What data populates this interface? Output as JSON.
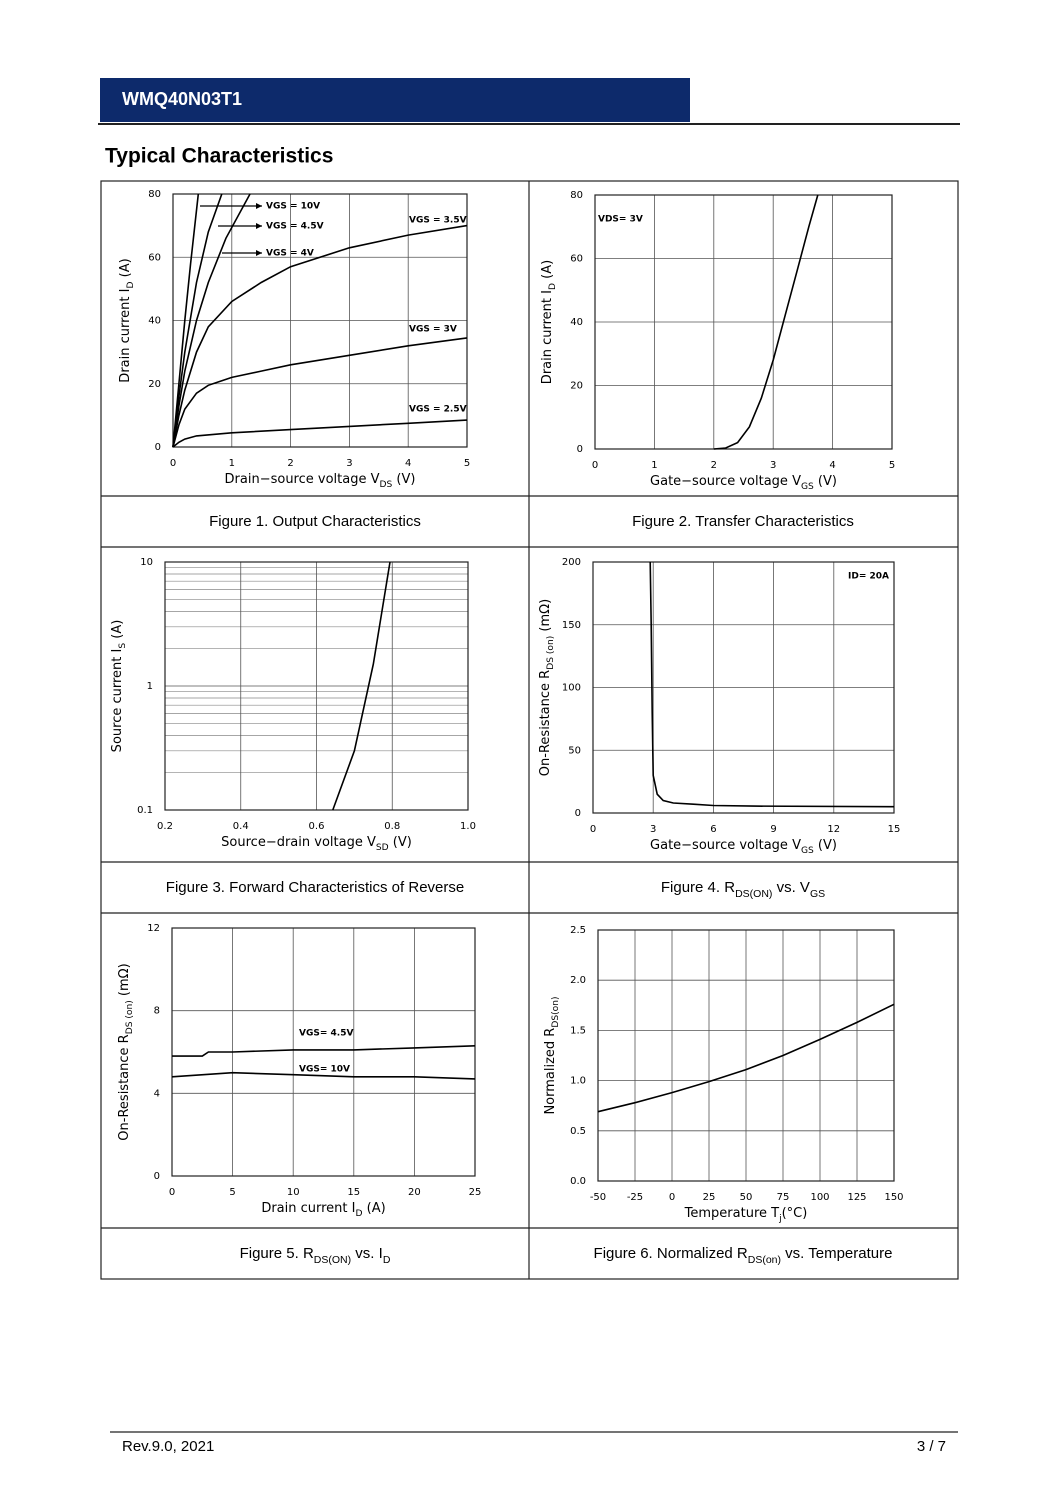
{
  "header": {
    "title": "WMQ40N03T1"
  },
  "section_title": "Typical Characteristics",
  "chart_data": [
    {
      "type": "line",
      "caption": [
        "Figure 1. Output Characteristics"
      ],
      "x_label": [
        "Drain−source voltage V",
        "DS",
        " (V)"
      ],
      "y_label": [
        "Drain current I",
        "D",
        " (A)"
      ],
      "xlim": [
        0,
        5
      ],
      "ylim": [
        0,
        80
      ],
      "xticks": [
        0,
        1,
        2,
        3,
        4,
        5
      ],
      "yticks": [
        0,
        20,
        40,
        60,
        80
      ],
      "grid": true,
      "series": [
        {
          "name": "VGS = 10V",
          "color": "#000000",
          "x": [
            0,
            0.1,
            0.2,
            0.3,
            0.43
          ],
          "values": [
            0,
            20,
            40,
            58,
            80
          ]
        },
        {
          "name": "VGS = 4.5V",
          "color": "#000000",
          "x": [
            0,
            0.1,
            0.2,
            0.4,
            0.6,
            0.83
          ],
          "values": [
            0,
            16,
            30,
            52,
            68,
            80
          ]
        },
        {
          "name": "VGS = 4V",
          "color": "#000000",
          "x": [
            0,
            0.1,
            0.2,
            0.4,
            0.6,
            0.9,
            1.31
          ],
          "values": [
            0,
            13,
            24,
            40,
            52,
            66,
            80
          ]
        },
        {
          "name": "VGS = 3.5V",
          "color": "#000000",
          "x": [
            0,
            0.1,
            0.2,
            0.4,
            0.6,
            1,
            1.5,
            2,
            3,
            4,
            5
          ],
          "values": [
            0,
            10,
            18,
            30,
            38,
            46,
            52,
            57,
            63,
            67,
            70
          ]
        },
        {
          "name": "VGS = 3V",
          "color": "#000000",
          "x": [
            0,
            0.1,
            0.2,
            0.4,
            0.6,
            1,
            1.5,
            2,
            3,
            4,
            5
          ],
          "values": [
            0,
            7,
            12,
            17,
            19.5,
            22,
            24,
            26,
            29,
            32,
            34.5
          ]
        },
        {
          "name": "VGS = 2.5V",
          "color": "#000000",
          "x": [
            0,
            0.1,
            0.2,
            0.4,
            1,
            2,
            3,
            4,
            5
          ],
          "values": [
            0,
            1.5,
            2.5,
            3.5,
            4.5,
            5.5,
            6.5,
            7.5,
            8.5
          ]
        }
      ]
    },
    {
      "type": "line",
      "caption": [
        "Figure 2. Transfer Characteristics"
      ],
      "x_label": [
        "Gate−source voltage V",
        "GS",
        " (V)"
      ],
      "y_label": [
        "Drain current I",
        "D",
        " (A)"
      ],
      "xlim": [
        0,
        5
      ],
      "ylim": [
        0,
        80
      ],
      "xticks": [
        0,
        1,
        2,
        3,
        4,
        5
      ],
      "yticks": [
        0,
        20,
        40,
        60,
        80
      ],
      "grid": true,
      "annotation": "VDS= 3V",
      "series": [
        {
          "name": "VDS= 3V",
          "color": "#000000",
          "x": [
            2,
            2.2,
            2.4,
            2.6,
            2.8,
            3,
            3.2,
            3.4,
            3.6,
            3.75
          ],
          "values": [
            0,
            0.3,
            2,
            7,
            16,
            28,
            42,
            56,
            70,
            80
          ]
        }
      ]
    },
    {
      "type": "line",
      "caption": [
        "Figure 3. Forward Characteristics of Reverse"
      ],
      "x_label": [
        "Source−drain voltage V",
        "SD",
        " (V)"
      ],
      "y_label": [
        "Source current I",
        "S",
        " (A)"
      ],
      "xlim": [
        0.2,
        1
      ],
      "ylim": [
        0.1,
        10
      ],
      "log_y": true,
      "xticks": [
        0.2,
        0.4,
        0.6,
        0.8,
        {
          "value": 1,
          "label": "1.0"
        }
      ],
      "yticks": [
        0.1,
        1,
        10
      ],
      "minor_yticks": [
        0.2,
        0.3,
        0.4,
        0.5,
        0.6,
        0.7,
        0.8,
        0.9,
        2,
        3,
        4,
        5,
        6,
        7,
        8,
        9
      ],
      "grid": true,
      "series": [
        {
          "name": "IS",
          "color": "#000000",
          "x": [
            0.643,
            0.7,
            0.75,
            0.794
          ],
          "values": [
            0.1,
            0.3,
            1.5,
            10
          ]
        }
      ]
    },
    {
      "type": "line",
      "caption": [
        "Figure 4. R",
        "DS(ON)",
        "  vs. V",
        "GS"
      ],
      "x_label": [
        "Gate−source voltage V",
        "GS",
        " (V)"
      ],
      "y_label": [
        "On-Resistance  R",
        "DS (on)",
        " (mΩ)"
      ],
      "xlim": [
        0,
        15
      ],
      "ylim": [
        0,
        200
      ],
      "xticks": [
        0,
        3,
        6,
        9,
        12,
        15
      ],
      "yticks": [
        0,
        50,
        100,
        150,
        200
      ],
      "grid": true,
      "annotation": "ID= 20A",
      "series": [
        {
          "name": "ID= 20A",
          "color": "#000000",
          "x": [
            2.85,
            2.9,
            2.95,
            3,
            3.2,
            3.5,
            4,
            5,
            6,
            8,
            15
          ],
          "values": [
            200,
            150,
            80,
            30,
            15,
            10,
            8,
            7,
            6,
            5.5,
            5
          ]
        }
      ]
    },
    {
      "type": "line",
      "caption": [
        "Figure 5. R",
        "DS(ON)",
        " vs. I",
        "D"
      ],
      "x_label": [
        "Drain current I",
        "D",
        " (A)"
      ],
      "y_label": [
        "On-Resistance  R",
        "DS (on)",
        " (mΩ)"
      ],
      "xlim": [
        0,
        25
      ],
      "ylim": [
        0,
        12
      ],
      "xticks": [
        0,
        5,
        10,
        15,
        20,
        25
      ],
      "yticks": [
        0,
        4,
        8,
        12
      ],
      "grid": true,
      "series": [
        {
          "name": "VGS= 4.5V",
          "color": "#000000",
          "x": [
            0,
            2.5,
            3,
            5,
            10,
            15,
            20,
            25
          ],
          "values": [
            5.8,
            5.8,
            6.0,
            6.0,
            6.1,
            6.1,
            6.2,
            6.3
          ]
        },
        {
          "name": "VGS= 10V",
          "color": "#000000",
          "x": [
            0,
            5,
            10,
            15,
            20,
            25
          ],
          "values": [
            4.8,
            5.0,
            4.9,
            4.8,
            4.8,
            4.7
          ]
        }
      ]
    },
    {
      "type": "line",
      "caption": [
        "Figure 6. Normalized R",
        "DS(on)",
        " vs. Temperature"
      ],
      "x_label": [
        "Temperature T",
        "j",
        "(°C)"
      ],
      "y_label": [
        "Normalized R",
        "DS(on)"
      ],
      "xlim": [
        -50,
        150
      ],
      "ylim": [
        0,
        2.5
      ],
      "xticks": [
        -50,
        -25,
        0,
        25,
        50,
        75,
        100,
        125,
        150
      ],
      "yticks": [
        {
          "value": 0,
          "label": "0.0"
        },
        0.5,
        {
          "value": 1,
          "label": "1.0"
        },
        1.5,
        {
          "value": 2,
          "label": "2.0"
        },
        2.5
      ],
      "grid": true,
      "series": [
        {
          "name": "RDS(on)",
          "color": "#000000",
          "x": [
            -50,
            -25,
            0,
            25,
            50,
            75,
            100,
            125,
            150
          ],
          "values": [
            0.69,
            0.78,
            0.88,
            0.99,
            1.11,
            1.25,
            1.41,
            1.58,
            1.76
          ]
        }
      ]
    }
  ],
  "footer": {
    "revision": "Rev.9.0, 2021",
    "page": "3 / 7"
  }
}
